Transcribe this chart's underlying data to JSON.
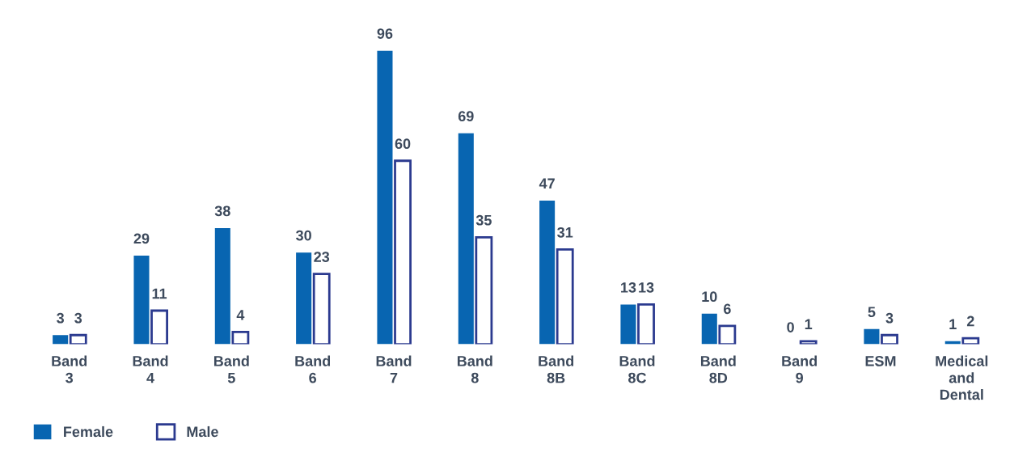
{
  "chart_data": {
    "type": "bar",
    "categories": [
      "Band 3",
      "Band 4",
      "Band 5",
      "Band 6",
      "Band 7",
      "Band 8",
      "Band 8B",
      "Band 8C",
      "Band 8D",
      "Band 9",
      "ESM",
      "Medical and Dental"
    ],
    "series": [
      {
        "name": "Female",
        "color": "#0865b1",
        "values": [
          3,
          29,
          38,
          30,
          96,
          69,
          47,
          13,
          10,
          0,
          5,
          1
        ]
      },
      {
        "name": "Male",
        "color": "#2b3a8f",
        "values": [
          3,
          11,
          4,
          23,
          60,
          35,
          31,
          13,
          6,
          1,
          3,
          2
        ]
      }
    ],
    "data_labels": true,
    "legend": "bottom left",
    "grid": false
  }
}
